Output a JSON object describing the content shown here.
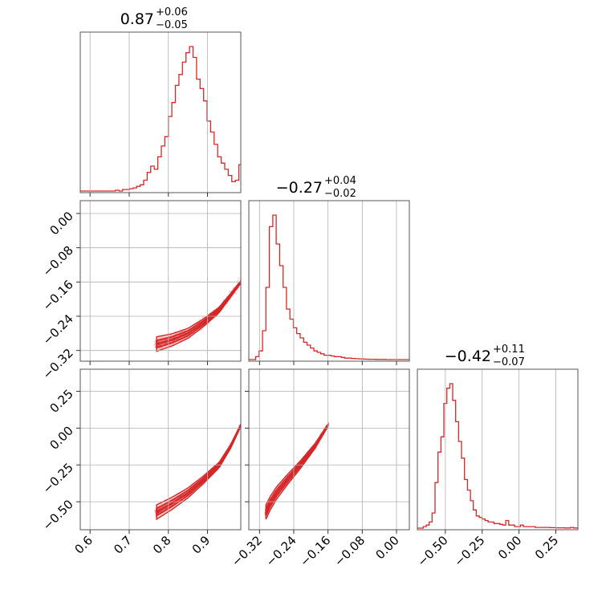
{
  "chart_data": {
    "type": "corner",
    "color": "#d62728",
    "parameters": [
      {
        "title": {
          "median": "0.87",
          "plus": "+0.06",
          "minus": "−0.05"
        },
        "range": [
          0.575,
          0.985
        ],
        "ticks": [
          0.6,
          0.7,
          0.8,
          0.9
        ],
        "tick_labels": [
          "0.6",
          "0.7",
          "0.8",
          "0.9"
        ],
        "hist_x": [
          0.575,
          0.584,
          0.593,
          0.602,
          0.611,
          0.62,
          0.629,
          0.638,
          0.647,
          0.656,
          0.665,
          0.674,
          0.683,
          0.692,
          0.701,
          0.71,
          0.719,
          0.728,
          0.737,
          0.746,
          0.755,
          0.764,
          0.773,
          0.782,
          0.791,
          0.8,
          0.809,
          0.818,
          0.827,
          0.836,
          0.845,
          0.854,
          0.863,
          0.872,
          0.881,
          0.89,
          0.899,
          0.908,
          0.917,
          0.926,
          0.935,
          0.944,
          0.953,
          0.962,
          0.971,
          0.98,
          0.985
        ],
        "hist_counts": [
          0,
          0,
          0,
          0,
          0,
          0,
          0,
          0,
          0,
          0,
          0.005,
          0,
          0.01,
          0.01,
          0.015,
          0.02,
          0.03,
          0.04,
          0.07,
          0.12,
          0.16,
          0.14,
          0.22,
          0.29,
          0.35,
          0.48,
          0.57,
          0.68,
          0.75,
          0.83,
          0.89,
          0.93,
          0.86,
          0.72,
          0.66,
          0.58,
          0.45,
          0.38,
          0.3,
          0.22,
          0.18,
          0.14,
          0.1,
          0.06,
          0.07,
          0.17,
          0.17
        ]
      },
      {
        "title": {
          "median": "−0.27",
          "plus": "+0.04",
          "minus": "−0.02"
        },
        "range": [
          -0.345,
          0.03
        ],
        "ticks": [
          -0.32,
          -0.24,
          -0.16,
          -0.08,
          0.0
        ],
        "tick_labels": [
          "−0.32",
          "−0.24",
          "−0.16",
          "−0.08",
          "0.00"
        ],
        "hist_x": [
          -0.345,
          -0.337,
          -0.329,
          -0.321,
          -0.313,
          -0.305,
          -0.297,
          -0.289,
          -0.281,
          -0.273,
          -0.265,
          -0.257,
          -0.249,
          -0.241,
          -0.233,
          -0.225,
          -0.217,
          -0.209,
          -0.201,
          -0.193,
          -0.185,
          -0.177,
          -0.169,
          -0.161,
          -0.153,
          -0.145,
          -0.137,
          -0.129,
          -0.121,
          -0.113,
          -0.105,
          -0.097,
          -0.089,
          -0.081,
          -0.073,
          -0.065,
          -0.057,
          -0.049,
          -0.041,
          -0.033,
          -0.025,
          -0.017,
          -0.009,
          -0.001,
          0.007,
          0.015,
          0.023,
          0.03
        ],
        "hist_counts": [
          0,
          0,
          0.02,
          0.06,
          0.2,
          0.5,
          0.92,
          1.0,
          0.8,
          0.65,
          0.5,
          0.35,
          0.28,
          0.22,
          0.18,
          0.15,
          0.12,
          0.1,
          0.08,
          0.06,
          0.05,
          0.04,
          0.03,
          0.03,
          0.025,
          0.02,
          0.02,
          0.015,
          0.01,
          0.01,
          0.008,
          0.006,
          0.005,
          0.004,
          0.003,
          0.002,
          0.002,
          0.001,
          0.001,
          0.001,
          0,
          0,
          0,
          0,
          0,
          0,
          0
        ]
      },
      {
        "title": {
          "median": "−0.42",
          "plus": "+0.11",
          "minus": "−0.07"
        },
        "range": [
          -0.69,
          0.4
        ],
        "ticks": [
          -0.5,
          -0.25,
          0.0,
          0.25
        ],
        "tick_labels": [
          "−0.50",
          "−0.25",
          "0.00",
          "0.25"
        ],
        "hist_x": [
          -0.69,
          -0.67,
          -0.65,
          -0.63,
          -0.61,
          -0.59,
          -0.57,
          -0.55,
          -0.53,
          -0.51,
          -0.49,
          -0.47,
          -0.45,
          -0.43,
          -0.41,
          -0.39,
          -0.37,
          -0.35,
          -0.33,
          -0.31,
          -0.29,
          -0.27,
          -0.25,
          -0.23,
          -0.21,
          -0.19,
          -0.17,
          -0.15,
          -0.13,
          -0.11,
          -0.09,
          -0.07,
          -0.05,
          -0.03,
          -0.01,
          0.01,
          0.03,
          0.05,
          0.07,
          0.09,
          0.11,
          0.13,
          0.15,
          0.17,
          0.19,
          0.21,
          0.23,
          0.25,
          0.27,
          0.29,
          0.31,
          0.33,
          0.35,
          0.37,
          0.39,
          0.4
        ],
        "hist_counts": [
          0,
          0,
          0.01,
          0.02,
          0.04,
          0.1,
          0.3,
          0.5,
          0.6,
          0.82,
          0.92,
          0.95,
          0.84,
          0.7,
          0.57,
          0.46,
          0.32,
          0.25,
          0.18,
          0.12,
          0.08,
          0.07,
          0.06,
          0.05,
          0.04,
          0.04,
          0.03,
          0.03,
          0.025,
          0.02,
          0.05,
          0.02,
          0.02,
          0.01,
          0.01,
          0.02,
          0.01,
          0.01,
          0.01,
          0.01,
          0.005,
          0.005,
          0.005,
          0.005,
          0.005,
          0.003,
          0.003,
          0.002,
          0.002,
          0.002,
          0.001,
          0.001,
          0.005,
          0.001,
          0.001
        ]
      }
    ],
    "trend_2d": {
      "p0": [
        0.77,
        0.81,
        0.85,
        0.89,
        0.93,
        0.96,
        0.985
      ],
      "p1": [
        -0.305,
        -0.295,
        -0.28,
        -0.255,
        -0.225,
        -0.19,
        -0.16
      ],
      "p2": [
        -0.57,
        -0.51,
        -0.44,
        -0.35,
        -0.25,
        -0.12,
        0.02
      ]
    }
  }
}
